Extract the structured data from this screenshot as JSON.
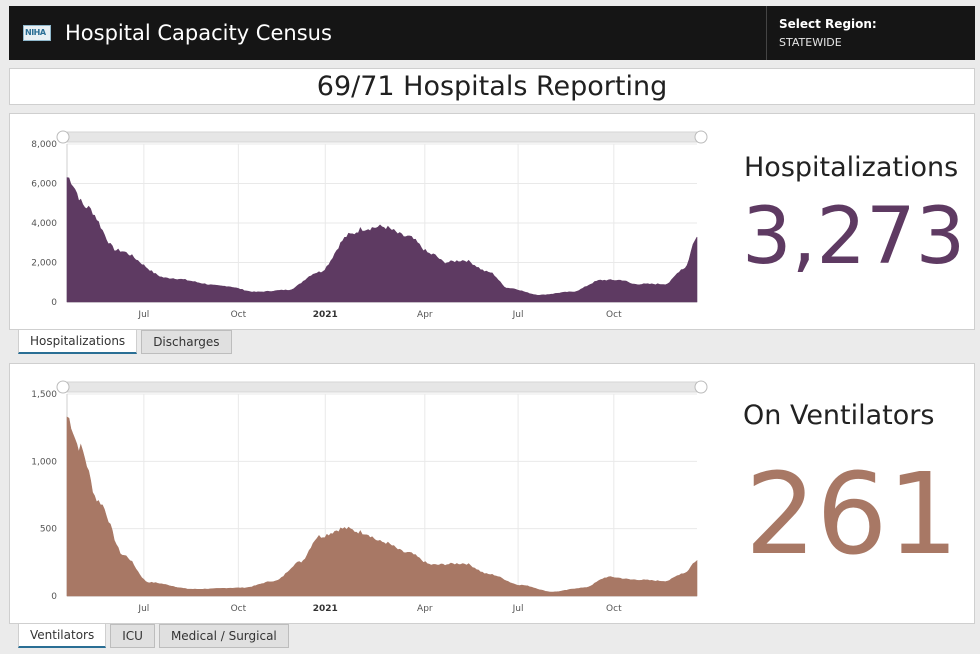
{
  "header": {
    "logo_text": "NIHA",
    "title": "Hospital Capacity Census",
    "region_label": "Select Region:",
    "region_value": "STATEWIDE"
  },
  "reporting": "69/71 Hospitals Reporting",
  "hospitalizations": {
    "kpi_title": "Hospitalizations",
    "kpi_value": "3,273",
    "tabs": [
      {
        "label": "Hospitalizations",
        "active": true
      },
      {
        "label": "Discharges",
        "active": false
      }
    ]
  },
  "ventilators": {
    "kpi_title": "On Ventilators",
    "kpi_value": "261",
    "tabs": [
      {
        "label": "Ventilators",
        "active": true
      },
      {
        "label": "ICU",
        "active": false
      },
      {
        "label": "Medical / Surgical",
        "active": false
      }
    ]
  },
  "colors": {
    "hosp_fill": "#5e3a62",
    "vent_fill": "#a87865",
    "header_bg": "#151515",
    "active_tab_line": "#2a6f95"
  },
  "chart_data": [
    {
      "type": "area",
      "x_tick_labels": [
        "Jul",
        "Oct",
        "2021",
        "Apr",
        "Jul",
        "Oct"
      ],
      "y_tick_labels": [
        "0",
        "2,000",
        "4,000",
        "6,000",
        "8,000"
      ],
      "ylim": [
        0,
        8000
      ],
      "grid": true,
      "x_index": [
        0,
        0.03,
        0.08,
        0.16,
        0.25,
        0.3,
        0.35,
        0.4,
        0.45,
        0.47,
        0.5,
        0.54,
        0.58,
        0.6,
        0.63,
        0.67,
        0.7,
        0.75,
        0.8,
        0.85,
        0.88,
        0.9,
        0.95,
        0.98,
        1.0
      ],
      "values": [
        6300,
        4800,
        2600,
        1200,
        800,
        500,
        600,
        1500,
        3400,
        3700,
        3800,
        3300,
        2400,
        2000,
        2100,
        1500,
        700,
        350,
        500,
        1100,
        1100,
        900,
        900,
        1700,
        3273
      ]
    },
    {
      "type": "area",
      "x_tick_labels": [
        "Jul",
        "Oct",
        "2021",
        "Apr",
        "Jul",
        "Oct"
      ],
      "y_tick_labels": [
        "0",
        "500",
        "1,000",
        "1,500"
      ],
      "ylim": [
        0,
        1500
      ],
      "grid": true,
      "x_index": [
        0,
        0.02,
        0.05,
        0.09,
        0.13,
        0.2,
        0.28,
        0.33,
        0.37,
        0.4,
        0.44,
        0.47,
        0.5,
        0.54,
        0.58,
        0.63,
        0.67,
        0.72,
        0.77,
        0.82,
        0.86,
        0.9,
        0.95,
        0.98,
        1.0
      ],
      "values": [
        1330,
        1100,
        700,
        300,
        100,
        50,
        60,
        110,
        250,
        440,
        500,
        470,
        400,
        320,
        230,
        240,
        160,
        80,
        30,
        60,
        140,
        120,
        110,
        170,
        261
      ]
    }
  ]
}
